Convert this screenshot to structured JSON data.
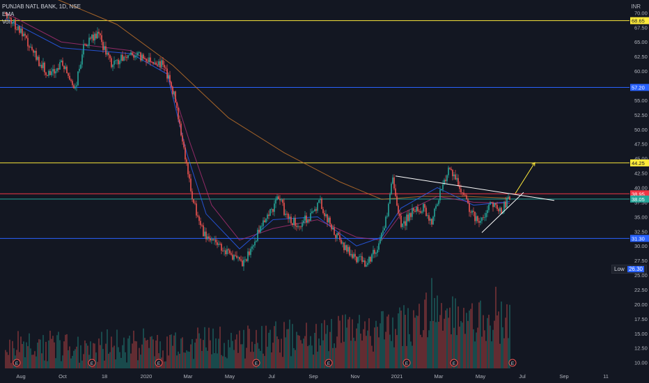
{
  "legend": {
    "symbol": "PUNJAB NATL BANK, 1D, NSE",
    "ema": "EMA",
    "vol": "Vol"
  },
  "currency": "INR",
  "low_label": {
    "text": "Low",
    "value": "26.30"
  },
  "colors": {
    "background": "#131722",
    "up": "#26a69a",
    "down": "#ef5350",
    "yellow_line": "#ffeb3b",
    "blue_line": "#2962ff",
    "red_line": "#f23645",
    "trendline": "#ffffff",
    "ema_slow": "#c9772b",
    "ema_mid": "#b03077",
    "ema_fast": "#2962ff"
  },
  "chart_data": {
    "type": "candlestick",
    "y_range": [
      9,
      71
    ],
    "y_ticks": [
      "10.00",
      "12.50",
      "15.00",
      "17.50",
      "20.00",
      "22.50",
      "25.00",
      "27.50",
      "30.00",
      "32.50",
      "35.00",
      "37.50",
      "40.00",
      "42.50",
      "45.00",
      "47.50",
      "50.00",
      "52.50",
      "55.00",
      "57.50",
      "60.00",
      "62.50",
      "65.00",
      "67.50",
      "70.00"
    ],
    "x_ticks": [
      "Aug",
      "Oct",
      "18",
      "2020",
      "Mar",
      "May",
      "Jul",
      "Sep",
      "Nov",
      "2021",
      "Mar",
      "May",
      "Jul",
      "Sep",
      "11"
    ],
    "horizontal_levels": [
      {
        "value": 68.65,
        "label": "68.65",
        "color": "#ffeb3b"
      },
      {
        "value": 57.2,
        "label": "57.20",
        "color": "#2962ff"
      },
      {
        "value": 44.25,
        "label": "44.25",
        "color": "#ffeb3b"
      },
      {
        "value": 38.95,
        "label": "38.95",
        "color": "#f23645"
      },
      {
        "value": 38.05,
        "label": "38.05",
        "color": "#26a69a"
      },
      {
        "value": 31.3,
        "label": "31.30",
        "color": "#2962ff"
      }
    ],
    "price_path": [
      [
        0,
        70.0
      ],
      [
        5,
        67.0
      ],
      [
        10,
        63.0
      ],
      [
        16,
        59.0
      ],
      [
        20,
        61.5
      ],
      [
        25,
        57.0
      ],
      [
        28,
        64.0
      ],
      [
        33,
        66.5
      ],
      [
        38,
        61.0
      ],
      [
        45,
        63.0
      ],
      [
        52,
        62.0
      ],
      [
        57,
        61.0
      ],
      [
        61,
        55.0
      ],
      [
        64,
        47.0
      ],
      [
        67,
        38.0
      ],
      [
        71,
        32.0
      ],
      [
        76,
        30.5
      ],
      [
        81,
        28.5
      ],
      [
        85,
        26.8
      ],
      [
        88,
        29.0
      ],
      [
        92,
        34.0
      ],
      [
        96,
        36.5
      ],
      [
        98,
        38.3
      ],
      [
        101,
        35.0
      ],
      [
        105,
        33.5
      ],
      [
        110,
        35.5
      ],
      [
        113,
        37.5
      ],
      [
        117,
        33.0
      ],
      [
        121,
        30.0
      ],
      [
        126,
        28.0
      ],
      [
        129,
        27.2
      ],
      [
        133,
        29.0
      ],
      [
        136,
        33.0
      ],
      [
        139,
        41.5
      ],
      [
        142,
        33.0
      ],
      [
        145,
        35.5
      ],
      [
        150,
        36.5
      ],
      [
        153,
        34.0
      ],
      [
        156,
        39.5
      ],
      [
        159,
        43.0
      ],
      [
        162,
        41.0
      ],
      [
        166,
        37.0
      ],
      [
        170,
        33.5
      ],
      [
        174,
        37.5
      ],
      [
        178,
        36.0
      ],
      [
        181,
        38.5
      ]
    ],
    "volume_path": [
      [
        0,
        11.5
      ],
      [
        60,
        11.8
      ],
      [
        90,
        12.5
      ],
      [
        135,
        14.0
      ],
      [
        160,
        16.5
      ],
      [
        181,
        15.0
      ]
    ],
    "volume_spikes": [
      {
        "t": 151,
        "v": 22.0
      },
      {
        "t": 153,
        "v": 24.5
      },
      {
        "t": 155,
        "v": 21.5
      },
      {
        "t": 176,
        "v": 23.0
      },
      {
        "t": 180,
        "v": 20.0
      }
    ],
    "ema_slow_path": [
      [
        0,
        76.0
      ],
      [
        20,
        72.0
      ],
      [
        40,
        68.0
      ],
      [
        60,
        61.0
      ],
      [
        80,
        52.0
      ],
      [
        100,
        46.0
      ],
      [
        120,
        41.0
      ],
      [
        135,
        38.0
      ],
      [
        150,
        38.5
      ],
      [
        165,
        38.5
      ],
      [
        181,
        38.2
      ]
    ],
    "ema_mid_path": [
      [
        0,
        70.0
      ],
      [
        20,
        65.0
      ],
      [
        45,
        63.5
      ],
      [
        58,
        60.0
      ],
      [
        66,
        48.0
      ],
      [
        74,
        37.0
      ],
      [
        84,
        31.0
      ],
      [
        96,
        33.0
      ],
      [
        112,
        34.5
      ],
      [
        126,
        31.5
      ],
      [
        135,
        31.0
      ],
      [
        142,
        35.5
      ],
      [
        155,
        38.5
      ],
      [
        168,
        37.5
      ],
      [
        181,
        37.3
      ]
    ],
    "ema_fast_path": [
      [
        0,
        69.0
      ],
      [
        20,
        64.0
      ],
      [
        45,
        63.0
      ],
      [
        58,
        59.5
      ],
      [
        65,
        46.0
      ],
      [
        72,
        35.5
      ],
      [
        84,
        29.5
      ],
      [
        96,
        34.5
      ],
      [
        112,
        35.0
      ],
      [
        126,
        30.0
      ],
      [
        135,
        31.5
      ],
      [
        142,
        36.5
      ],
      [
        155,
        40.0
      ],
      [
        168,
        37.0
      ],
      [
        181,
        37.6
      ]
    ],
    "trendlines": [
      {
        "from": [
          140,
          42.0
        ],
        "to": [
          197,
          37.8
        ],
        "color": "#ffffff"
      },
      {
        "from": [
          171,
          32.3
        ],
        "to": [
          186,
          39.2
        ],
        "color": "#ffffff"
      },
      {
        "from": [
          183,
          39.0
        ],
        "to": [
          190,
          44.3
        ],
        "color": "#ffeb3b",
        "arrow": true
      }
    ],
    "earnings_marker": "E",
    "earnings_at": [
      4,
      31,
      55,
      90,
      116,
      144,
      161,
      182
    ]
  }
}
